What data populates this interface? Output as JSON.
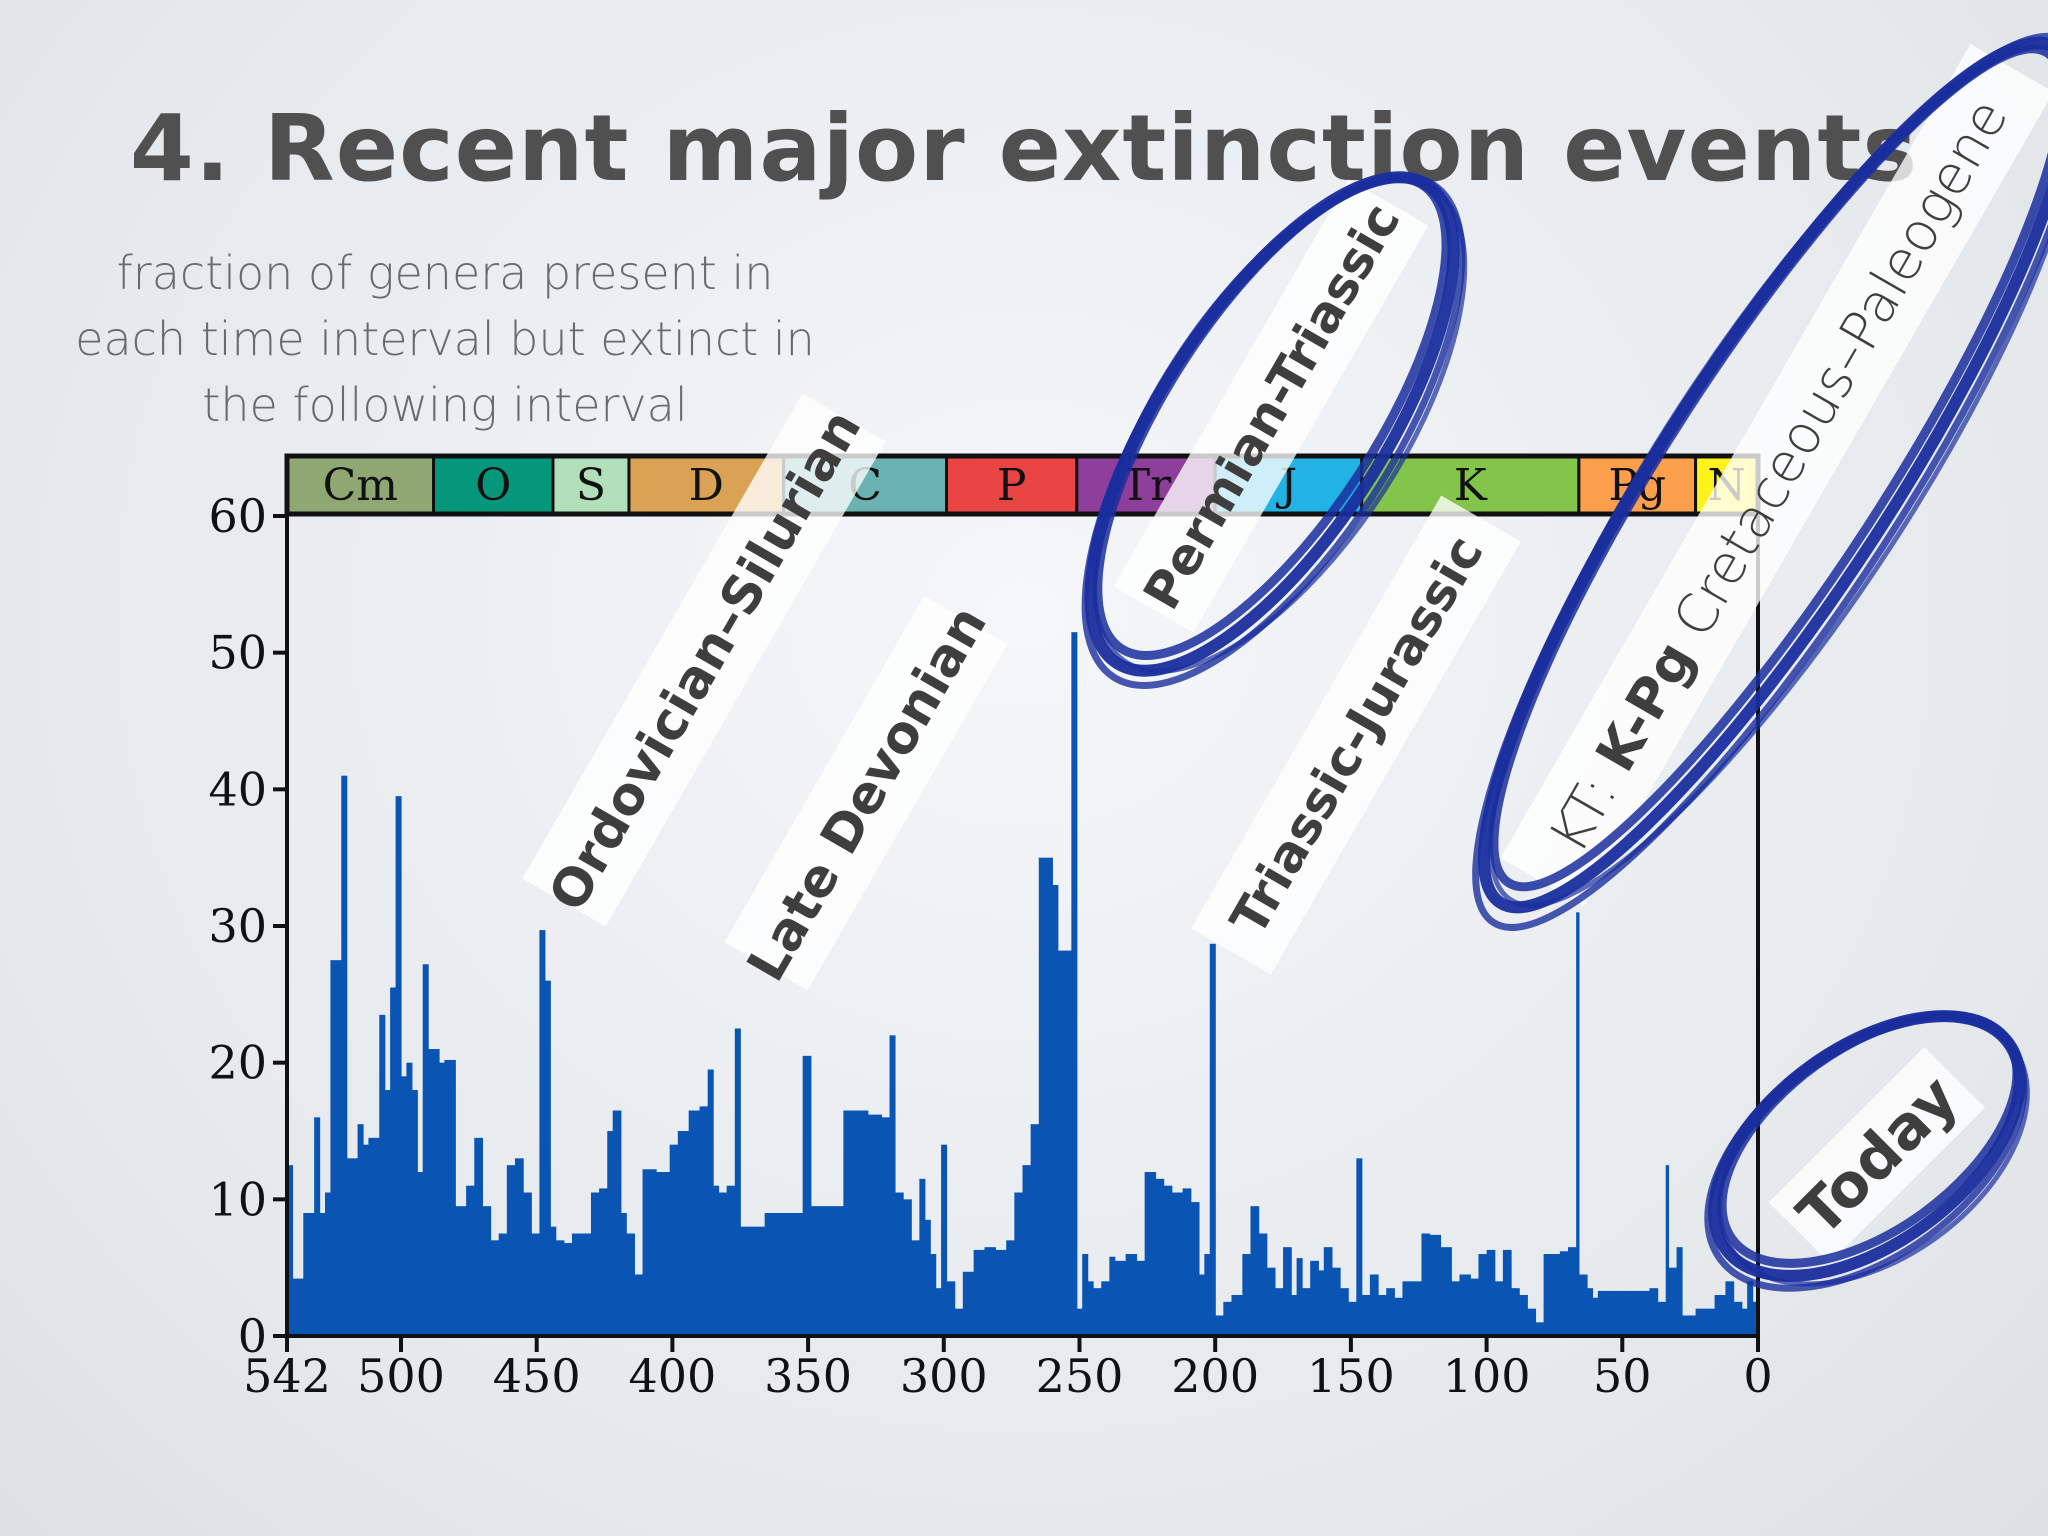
{
  "slide": {
    "title": "4. Recent major extinction events",
    "subtitle_lines": [
      "fraction of genera present in",
      "each time interval but extinct in",
      "the following interval"
    ]
  },
  "chart_data": {
    "type": "bar",
    "x_axis": {
      "range": [
        542,
        0
      ],
      "ticks": [
        542,
        500,
        450,
        400,
        350,
        300,
        250,
        200,
        150,
        100,
        50,
        0
      ],
      "tick_labels": [
        "542",
        "500",
        "450",
        "400",
        "350",
        "300",
        "250",
        "200",
        "150",
        "100",
        "50",
        "0"
      ]
    },
    "y_axis": {
      "range": [
        0,
        60
      ],
      "ticks": [
        0,
        10,
        20,
        30,
        40,
        50,
        60
      ],
      "tick_labels": [
        "0",
        "10",
        "20",
        "30",
        "40",
        "50",
        "60"
      ]
    },
    "bar_color": "#0a55b4",
    "periods": [
      {
        "label": "Cm",
        "start": 542,
        "end": 488,
        "color": "#8fa873"
      },
      {
        "label": "O",
        "start": 488,
        "end": 444,
        "color": "#05967b"
      },
      {
        "label": "S",
        "start": 444,
        "end": 416,
        "color": "#b1dfb9"
      },
      {
        "label": "D",
        "start": 416,
        "end": 359,
        "color": "#d9a254"
      },
      {
        "label": "C",
        "start": 359,
        "end": 299,
        "color": "#6ab3b2"
      },
      {
        "label": "P",
        "start": 299,
        "end": 251,
        "color": "#e94542"
      },
      {
        "label": "Tr",
        "start": 251,
        "end": 200,
        "color": "#8e3f9c"
      },
      {
        "label": "J",
        "start": 200,
        "end": 146,
        "color": "#21b3e4"
      },
      {
        "label": "K",
        "start": 146,
        "end": 66,
        "color": "#83c44a"
      },
      {
        "label": "Pg",
        "start": 66,
        "end": 23,
        "color": "#fb9f4d"
      },
      {
        "label": "N",
        "start": 23,
        "end": 0,
        "color": "#fef21d"
      }
    ],
    "intervals": [
      {
        "start": 542,
        "end": 540,
        "value": 12.5
      },
      {
        "start": 540,
        "end": 536,
        "value": 4.2
      },
      {
        "start": 536,
        "end": 532,
        "value": 9.0
      },
      {
        "start": 532,
        "end": 530,
        "value": 16.0
      },
      {
        "start": 530,
        "end": 528,
        "value": 9.0
      },
      {
        "start": 528,
        "end": 526,
        "value": 10.5
      },
      {
        "start": 526,
        "end": 522,
        "value": 27.5
      },
      {
        "start": 522,
        "end": 520,
        "value": 41.0
      },
      {
        "start": 520,
        "end": 516,
        "value": 13.0
      },
      {
        "start": 516,
        "end": 514,
        "value": 15.5
      },
      {
        "start": 514,
        "end": 512,
        "value": 14.0
      },
      {
        "start": 512,
        "end": 508,
        "value": 14.5
      },
      {
        "start": 508,
        "end": 506,
        "value": 23.5
      },
      {
        "start": 506,
        "end": 504,
        "value": 18.0
      },
      {
        "start": 504,
        "end": 502,
        "value": 25.5
      },
      {
        "start": 502,
        "end": 500,
        "value": 39.5
      },
      {
        "start": 500,
        "end": 498,
        "value": 19.0
      },
      {
        "start": 498,
        "end": 496,
        "value": 20.0
      },
      {
        "start": 496,
        "end": 494,
        "value": 18.0
      },
      {
        "start": 494,
        "end": 492,
        "value": 12.0
      },
      {
        "start": 492,
        "end": 490,
        "value": 27.2
      },
      {
        "start": 490,
        "end": 488,
        "value": 21.0
      },
      {
        "start": 488,
        "end": 486,
        "value": 21.0
      },
      {
        "start": 486,
        "end": 484,
        "value": 20.0
      },
      {
        "start": 484,
        "end": 480,
        "value": 20.2
      },
      {
        "start": 480,
        "end": 476,
        "value": 9.5
      },
      {
        "start": 476,
        "end": 473,
        "value": 11.0
      },
      {
        "start": 473,
        "end": 470,
        "value": 14.5
      },
      {
        "start": 470,
        "end": 467,
        "value": 9.5
      },
      {
        "start": 467,
        "end": 464,
        "value": 7.0
      },
      {
        "start": 464,
        "end": 461,
        "value": 7.5
      },
      {
        "start": 461,
        "end": 458,
        "value": 12.5
      },
      {
        "start": 458,
        "end": 455,
        "value": 13.0
      },
      {
        "start": 455,
        "end": 452,
        "value": 10.5
      },
      {
        "start": 452,
        "end": 449,
        "value": 7.5
      },
      {
        "start": 449,
        "end": 447,
        "value": 29.7
      },
      {
        "start": 447,
        "end": 445,
        "value": 26.0
      },
      {
        "start": 445,
        "end": 443,
        "value": 8.0
      },
      {
        "start": 443,
        "end": 440,
        "value": 7.0
      },
      {
        "start": 440,
        "end": 437,
        "value": 6.8
      },
      {
        "start": 437,
        "end": 434,
        "value": 7.5
      },
      {
        "start": 434,
        "end": 430,
        "value": 7.5
      },
      {
        "start": 430,
        "end": 427,
        "value": 10.5
      },
      {
        "start": 427,
        "end": 424,
        "value": 10.8
      },
      {
        "start": 424,
        "end": 422,
        "value": 15.0
      },
      {
        "start": 422,
        "end": 419,
        "value": 16.5
      },
      {
        "start": 419,
        "end": 417,
        "value": 9.0
      },
      {
        "start": 417,
        "end": 414,
        "value": 7.5
      },
      {
        "start": 414,
        "end": 411,
        "value": 4.5
      },
      {
        "start": 411,
        "end": 406,
        "value": 12.2
      },
      {
        "start": 406,
        "end": 401,
        "value": 12.0
      },
      {
        "start": 401,
        "end": 398,
        "value": 14.0
      },
      {
        "start": 398,
        "end": 394,
        "value": 15.0
      },
      {
        "start": 394,
        "end": 390,
        "value": 16.5
      },
      {
        "start": 390,
        "end": 387,
        "value": 16.8
      },
      {
        "start": 387,
        "end": 385,
        "value": 19.5
      },
      {
        "start": 385,
        "end": 383,
        "value": 11.0
      },
      {
        "start": 383,
        "end": 380,
        "value": 10.5
      },
      {
        "start": 380,
        "end": 377,
        "value": 11.0
      },
      {
        "start": 377,
        "end": 375,
        "value": 22.5
      },
      {
        "start": 375,
        "end": 370,
        "value": 8.0
      },
      {
        "start": 370,
        "end": 366,
        "value": 8.0
      },
      {
        "start": 366,
        "end": 362,
        "value": 9.0
      },
      {
        "start": 362,
        "end": 359,
        "value": 9.0
      },
      {
        "start": 359,
        "end": 356,
        "value": 9.0
      },
      {
        "start": 356,
        "end": 352,
        "value": 9.0
      },
      {
        "start": 352,
        "end": 349,
        "value": 20.5
      },
      {
        "start": 349,
        "end": 346,
        "value": 9.5
      },
      {
        "start": 346,
        "end": 342,
        "value": 9.5
      },
      {
        "start": 342,
        "end": 337,
        "value": 9.5
      },
      {
        "start": 337,
        "end": 333,
        "value": 16.5
      },
      {
        "start": 333,
        "end": 328,
        "value": 16.5
      },
      {
        "start": 328,
        "end": 323,
        "value": 16.2
      },
      {
        "start": 323,
        "end": 320,
        "value": 16.0
      },
      {
        "start": 320,
        "end": 318,
        "value": 22.0
      },
      {
        "start": 318,
        "end": 315,
        "value": 10.5
      },
      {
        "start": 315,
        "end": 312,
        "value": 10.0
      },
      {
        "start": 312,
        "end": 309,
        "value": 7.0
      },
      {
        "start": 309,
        "end": 307,
        "value": 11.5
      },
      {
        "start": 307,
        "end": 305,
        "value": 8.5
      },
      {
        "start": 305,
        "end": 303,
        "value": 6.0
      },
      {
        "start": 303,
        "end": 301,
        "value": 3.5
      },
      {
        "start": 301,
        "end": 299,
        "value": 14.0
      },
      {
        "start": 299,
        "end": 296,
        "value": 4.0
      },
      {
        "start": 296,
        "end": 293,
        "value": 2.0
      },
      {
        "start": 293,
        "end": 289,
        "value": 4.7
      },
      {
        "start": 289,
        "end": 285,
        "value": 6.3
      },
      {
        "start": 285,
        "end": 281,
        "value": 6.5
      },
      {
        "start": 281,
        "end": 277,
        "value": 6.3
      },
      {
        "start": 277,
        "end": 274,
        "value": 7.0
      },
      {
        "start": 274,
        "end": 271,
        "value": 10.5
      },
      {
        "start": 271,
        "end": 268,
        "value": 12.5
      },
      {
        "start": 268,
        "end": 265,
        "value": 15.5
      },
      {
        "start": 265,
        "end": 263,
        "value": 35.0
      },
      {
        "start": 263,
        "end": 260,
        "value": 35.0
      },
      {
        "start": 260,
        "end": 258,
        "value": 33.0
      },
      {
        "start": 258,
        "end": 256,
        "value": 28.2
      },
      {
        "start": 256,
        "end": 253,
        "value": 28.2
      },
      {
        "start": 253,
        "end": 251,
        "value": 51.5
      },
      {
        "start": 251,
        "end": 249,
        "value": 2.0
      },
      {
        "start": 249,
        "end": 247,
        "value": 6.0
      },
      {
        "start": 247,
        "end": 245,
        "value": 4.0
      },
      {
        "start": 245,
        "end": 242,
        "value": 3.5
      },
      {
        "start": 242,
        "end": 239,
        "value": 4.0
      },
      {
        "start": 239,
        "end": 237,
        "value": 5.8
      },
      {
        "start": 237,
        "end": 233,
        "value": 5.5
      },
      {
        "start": 233,
        "end": 229,
        "value": 6.0
      },
      {
        "start": 229,
        "end": 226,
        "value": 5.5
      },
      {
        "start": 226,
        "end": 222,
        "value": 12.0
      },
      {
        "start": 222,
        "end": 219,
        "value": 11.5
      },
      {
        "start": 219,
        "end": 216,
        "value": 11.0
      },
      {
        "start": 216,
        "end": 212,
        "value": 10.5
      },
      {
        "start": 212,
        "end": 209,
        "value": 10.8
      },
      {
        "start": 209,
        "end": 206,
        "value": 9.8
      },
      {
        "start": 206,
        "end": 204,
        "value": 4.5
      },
      {
        "start": 204,
        "end": 202,
        "value": 6.0
      },
      {
        "start": 202,
        "end": 200,
        "value": 28.7
      },
      {
        "start": 200,
        "end": 197,
        "value": 1.5
      },
      {
        "start": 197,
        "end": 194,
        "value": 2.5
      },
      {
        "start": 194,
        "end": 190,
        "value": 3.0
      },
      {
        "start": 190,
        "end": 187,
        "value": 6.0
      },
      {
        "start": 187,
        "end": 184,
        "value": 9.5
      },
      {
        "start": 184,
        "end": 181,
        "value": 7.5
      },
      {
        "start": 181,
        "end": 178,
        "value": 5.0
      },
      {
        "start": 178,
        "end": 175,
        "value": 3.5
      },
      {
        "start": 175,
        "end": 172,
        "value": 6.5
      },
      {
        "start": 172,
        "end": 170,
        "value": 3.0
      },
      {
        "start": 170,
        "end": 168,
        "value": 5.7
      },
      {
        "start": 168,
        "end": 165,
        "value": 3.5
      },
      {
        "start": 165,
        "end": 162,
        "value": 5.5
      },
      {
        "start": 162,
        "end": 160,
        "value": 4.8
      },
      {
        "start": 160,
        "end": 157,
        "value": 6.5
      },
      {
        "start": 157,
        "end": 154,
        "value": 5.0
      },
      {
        "start": 154,
        "end": 151,
        "value": 3.5
      },
      {
        "start": 151,
        "end": 148,
        "value": 2.5
      },
      {
        "start": 148,
        "end": 146,
        "value": 13.0
      },
      {
        "start": 146,
        "end": 143,
        "value": 3.0
      },
      {
        "start": 143,
        "end": 140,
        "value": 4.5
      },
      {
        "start": 140,
        "end": 137,
        "value": 3.0
      },
      {
        "start": 137,
        "end": 134,
        "value": 3.5
      },
      {
        "start": 134,
        "end": 131,
        "value": 2.8
      },
      {
        "start": 131,
        "end": 128,
        "value": 4.0
      },
      {
        "start": 128,
        "end": 124,
        "value": 4.0
      },
      {
        "start": 124,
        "end": 121,
        "value": 7.5
      },
      {
        "start": 121,
        "end": 117,
        "value": 7.4
      },
      {
        "start": 117,
        "end": 113,
        "value": 6.5
      },
      {
        "start": 113,
        "end": 110,
        "value": 4.0
      },
      {
        "start": 110,
        "end": 106,
        "value": 4.5
      },
      {
        "start": 106,
        "end": 103,
        "value": 4.2
      },
      {
        "start": 103,
        "end": 100,
        "value": 6.0
      },
      {
        "start": 100,
        "end": 97,
        "value": 6.3
      },
      {
        "start": 97,
        "end": 94,
        "value": 4.0
      },
      {
        "start": 94,
        "end": 91,
        "value": 6.3
      },
      {
        "start": 91,
        "end": 88,
        "value": 3.5
      },
      {
        "start": 88,
        "end": 85,
        "value": 3.0
      },
      {
        "start": 85,
        "end": 82,
        "value": 2.0
      },
      {
        "start": 82,
        "end": 79,
        "value": 1.0
      },
      {
        "start": 79,
        "end": 76,
        "value": 6.0
      },
      {
        "start": 76,
        "end": 73,
        "value": 6.0
      },
      {
        "start": 73,
        "end": 70,
        "value": 6.2
      },
      {
        "start": 70,
        "end": 67,
        "value": 6.5
      },
      {
        "start": 67,
        "end": 66,
        "value": 31.0
      },
      {
        "start": 66,
        "end": 63,
        "value": 4.5
      },
      {
        "start": 63,
        "end": 61,
        "value": 3.5
      },
      {
        "start": 61,
        "end": 59,
        "value": 2.8
      },
      {
        "start": 59,
        "end": 56,
        "value": 3.3
      },
      {
        "start": 56,
        "end": 50,
        "value": 3.3
      },
      {
        "start": 50,
        "end": 45,
        "value": 3.3
      },
      {
        "start": 45,
        "end": 40,
        "value": 3.3
      },
      {
        "start": 40,
        "end": 37,
        "value": 3.5
      },
      {
        "start": 37,
        "end": 34,
        "value": 2.5
      },
      {
        "start": 34,
        "end": 33,
        "value": 12.5
      },
      {
        "start": 33,
        "end": 30,
        "value": 5.0
      },
      {
        "start": 30,
        "end": 28,
        "value": 6.5
      },
      {
        "start": 28,
        "end": 25,
        "value": 1.5
      },
      {
        "start": 25,
        "end": 23,
        "value": 1.5
      },
      {
        "start": 23,
        "end": 20,
        "value": 2.0
      },
      {
        "start": 20,
        "end": 16,
        "value": 2.0
      },
      {
        "start": 16,
        "end": 12,
        "value": 3.0
      },
      {
        "start": 12,
        "end": 9,
        "value": 4.0
      },
      {
        "start": 9,
        "end": 6,
        "value": 2.5
      },
      {
        "start": 6,
        "end": 4,
        "value": 2.0
      },
      {
        "start": 4,
        "end": 2,
        "value": 4.0
      },
      {
        "start": 2,
        "end": 0,
        "value": 2.5
      }
    ]
  },
  "annotations": [
    {
      "id": "ordovician-silurian",
      "text": "Ordovician–Silurian",
      "circled": false
    },
    {
      "id": "late-devonian",
      "text": "Late Devonian",
      "circled": false
    },
    {
      "id": "permian-triassic",
      "text": "Permian-Triassic",
      "circled": true
    },
    {
      "id": "triassic-jurassic",
      "text": "Triassic-Jurassic",
      "circled": false
    },
    {
      "id": "kt-kpg",
      "prefix": "KT: ",
      "bold": "K-Pg",
      "suffix": " Cretaceous–Paleogene",
      "circled": true
    },
    {
      "id": "today",
      "text": "Today",
      "circled": true
    }
  ],
  "marker_color": "#1a2e9e"
}
